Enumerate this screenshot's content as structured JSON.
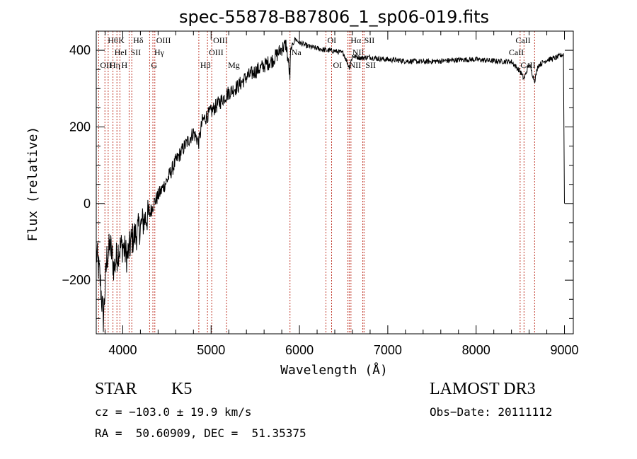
{
  "chart_data": {
    "type": "line",
    "title": "spec-55878-B87806_1_sp06-019.fits",
    "xlabel": "Wavelength (Å)",
    "ylabel": "Flux (relative)",
    "xlim": [
      3700,
      9100
    ],
    "ylim": [
      -340,
      450
    ],
    "x_ticks": [
      4000,
      5000,
      6000,
      7000,
      8000,
      9000
    ],
    "x_tick_labels": [
      "4000",
      "5000",
      "6000",
      "7000",
      "8000",
      "9000"
    ],
    "y_ticks": [
      -200,
      0,
      200,
      400
    ],
    "y_tick_labels": [
      "−200",
      "0",
      "200",
      "400"
    ],
    "grid": false,
    "series": [
      {
        "name": "spectrum",
        "x": [
          3700,
          3740,
          3780,
          3820,
          3860,
          3900,
          3950,
          4000,
          4050,
          4100,
          4150,
          4200,
          4250,
          4300,
          4350,
          4400,
          4500,
          4600,
          4700,
          4800,
          4861,
          4900,
          5000,
          5100,
          5200,
          5300,
          5400,
          5500,
          5600,
          5700,
          5800,
          5850,
          5893,
          5900,
          5950,
          6000,
          6100,
          6200,
          6300,
          6400,
          6500,
          6563,
          6600,
          6700,
          6800,
          6900,
          7000,
          7200,
          7400,
          7600,
          7800,
          8000,
          8200,
          8400,
          8498,
          8542,
          8600,
          8662,
          8700,
          8800,
          8900,
          8990,
          9000
        ],
        "y": [
          -130,
          -190,
          -300,
          -140,
          -110,
          -170,
          -120,
          -110,
          -140,
          -95,
          -80,
          -60,
          -40,
          -30,
          0,
          20,
          60,
          110,
          150,
          185,
          160,
          215,
          240,
          265,
          290,
          305,
          330,
          345,
          360,
          375,
          405,
          415,
          330,
          400,
          430,
          420,
          410,
          405,
          400,
          398,
          392,
          355,
          385,
          380,
          382,
          378,
          376,
          372,
          370,
          372,
          375,
          376,
          372,
          370,
          345,
          325,
          365,
          320,
          360,
          375,
          380,
          390,
          0
        ]
      }
    ],
    "lines": [
      {
        "label": "Hθ",
        "x": 3798,
        "row": 0,
        "dx": 4
      },
      {
        "label": "OII",
        "x": 3727,
        "row": 2,
        "dx": 2
      },
      {
        "label": "Hη",
        "x": 3835,
        "row": 2,
        "dx": 2
      },
      {
        "label": "HeI",
        "x": 3889,
        "row": 1,
        "dx": 2
      },
      {
        "label": "K",
        "x": 3934,
        "row": 0,
        "dx": 2
      },
      {
        "label": "H",
        "x": 3968,
        "row": 2,
        "dx": 2
      },
      {
        "label": "SII",
        "x": 4072,
        "row": 1,
        "dx": 2
      },
      {
        "label": "Hδ",
        "x": 4102,
        "row": 0,
        "dx": 2
      },
      {
        "label": "G",
        "x": 4304,
        "row": 2,
        "dx": 2
      },
      {
        "label": "OIII",
        "x": 4363,
        "row": 0,
        "dx": 2
      },
      {
        "label": "Hγ",
        "x": 4341,
        "row": 1,
        "dx": 2
      },
      {
        "label": "Hβ",
        "x": 4861,
        "row": 2,
        "dx": 2
      },
      {
        "label": "OIII",
        "x": 4959,
        "row": 1,
        "dx": 2
      },
      {
        "label": "OIII",
        "x": 5007,
        "row": 0,
        "dx": 2
      },
      {
        "label": "Mg",
        "x": 5175,
        "row": 2,
        "dx": 2
      },
      {
        "label": "Na",
        "x": 5893,
        "row": 1,
        "dx": 2
      },
      {
        "label": "OI",
        "x": 6300,
        "row": 0,
        "dx": 2
      },
      {
        "label": "OI",
        "x": 6364,
        "row": 2,
        "dx": 2
      },
      {
        "label": "Hα",
        "x": 6563,
        "row": 0,
        "dx": 2
      },
      {
        "label": "NII",
        "x": 6548,
        "row": 2,
        "dx": 2
      },
      {
        "label": "NII",
        "x": 6583,
        "row": 1,
        "dx": 2
      },
      {
        "label": "SII",
        "x": 6717,
        "row": 0,
        "dx": 2
      },
      {
        "label": "SII",
        "x": 6731,
        "row": 2,
        "dx": 2
      },
      {
        "label": "CaII",
        "x": 8498,
        "row": 1,
        "dx": -16
      },
      {
        "label": "CaII",
        "x": 8542,
        "row": 0,
        "dx": -12
      },
      {
        "label": "CaII",
        "x": 8662,
        "row": 2,
        "dx": -20
      }
    ]
  },
  "info": {
    "object_class": "STAR",
    "subclass": "K5",
    "survey": "LAMOST DR3",
    "redshift": "cz = −103.0 ± 19.9 km/s",
    "obs_date": "Obs−Date: 20111112",
    "coords": "RA =  50.60909, DEC =  51.35375"
  }
}
